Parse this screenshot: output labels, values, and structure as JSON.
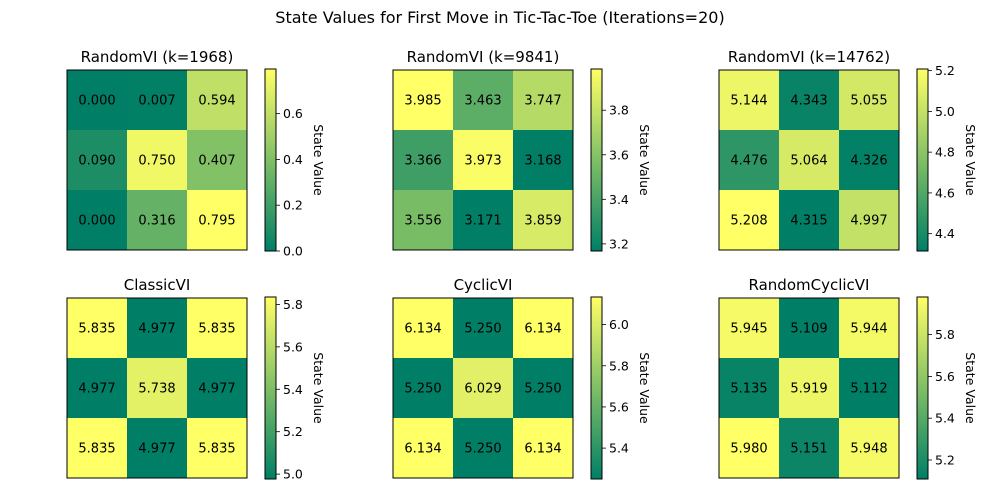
{
  "suptitle": "State Values for First Move in Tic-Tac-Toe (Iterations=20)",
  "colors": {
    "low": "#007f66",
    "high": "#ffff66",
    "colormap": "summer"
  },
  "chart_data": [
    {
      "type": "heatmap",
      "title": "RandomVI (k=1968)",
      "values": [
        [
          0.0,
          0.007,
          0.594
        ],
        [
          0.09,
          0.75,
          0.407
        ],
        [
          0.0,
          0.316,
          0.795
        ]
      ],
      "vmin": 0.0,
      "vmax": 0.795,
      "colorbar": {
        "label": "State Value",
        "ticks": [
          "0.0",
          "0.2",
          "0.4",
          "0.6"
        ],
        "tick_values": [
          0.0,
          0.2,
          0.4,
          0.6
        ]
      }
    },
    {
      "type": "heatmap",
      "title": "RandomVI (k=9841)",
      "values": [
        [
          3.985,
          3.463,
          3.747
        ],
        [
          3.366,
          3.973,
          3.168
        ],
        [
          3.556,
          3.171,
          3.859
        ]
      ],
      "vmin": 3.168,
      "vmax": 3.985,
      "colorbar": {
        "label": "State Value",
        "ticks": [
          "3.2",
          "3.4",
          "3.6",
          "3.8"
        ],
        "tick_values": [
          3.2,
          3.4,
          3.6,
          3.8
        ]
      }
    },
    {
      "type": "heatmap",
      "title": "RandomVI (k=14762)",
      "values": [
        [
          5.144,
          4.343,
          5.055
        ],
        [
          4.476,
          5.064,
          4.326
        ],
        [
          5.208,
          4.315,
          4.997
        ]
      ],
      "vmin": 4.315,
      "vmax": 5.208,
      "colorbar": {
        "label": "State Value",
        "ticks": [
          "4.4",
          "4.6",
          "4.8",
          "5.0",
          "5.2"
        ],
        "tick_values": [
          4.4,
          4.6,
          4.8,
          5.0,
          5.2
        ]
      }
    },
    {
      "type": "heatmap",
      "title": "ClassicVI",
      "values": [
        [
          5.835,
          4.977,
          5.835
        ],
        [
          4.977,
          5.738,
          4.977
        ],
        [
          5.835,
          4.977,
          5.835
        ]
      ],
      "vmin": 4.977,
      "vmax": 5.835,
      "colorbar": {
        "label": "State Value",
        "ticks": [
          "5.0",
          "5.2",
          "5.4",
          "5.6",
          "5.8"
        ],
        "tick_values": [
          5.0,
          5.2,
          5.4,
          5.6,
          5.8
        ]
      }
    },
    {
      "type": "heatmap",
      "title": "CyclicVI",
      "values": [
        [
          6.134,
          5.25,
          6.134
        ],
        [
          5.25,
          6.029,
          5.25
        ],
        [
          6.134,
          5.25,
          6.134
        ]
      ],
      "vmin": 5.25,
      "vmax": 6.134,
      "colorbar": {
        "label": "State Value",
        "ticks": [
          "5.4",
          "5.6",
          "5.8",
          "6.0"
        ],
        "tick_values": [
          5.4,
          5.6,
          5.8,
          6.0
        ]
      }
    },
    {
      "type": "heatmap",
      "title": "RandomCyclicVI",
      "values": [
        [
          5.945,
          5.109,
          5.944
        ],
        [
          5.135,
          5.919,
          5.112
        ],
        [
          5.98,
          5.151,
          5.948
        ]
      ],
      "vmin": 5.109,
      "vmax": 5.98,
      "colorbar": {
        "label": "State Value",
        "ticks": [
          "5.2",
          "5.4",
          "5.6",
          "5.8"
        ],
        "tick_values": [
          5.2,
          5.4,
          5.6,
          5.8
        ]
      }
    }
  ]
}
